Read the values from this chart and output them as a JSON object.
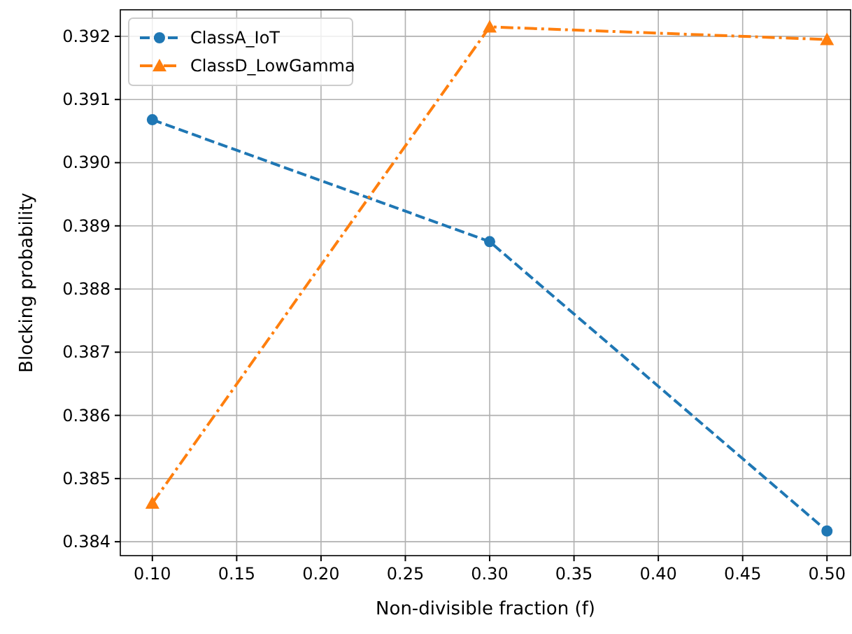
{
  "chart_data": {
    "type": "line",
    "xlabel": "Non-divisible fraction (f)",
    "ylabel": "Blocking probability",
    "x": [
      0.1,
      0.3,
      0.5
    ],
    "series": [
      {
        "name": "ClassA_IoT",
        "color": "#1f77b4",
        "values": [
          0.39068,
          0.38875,
          0.38417
        ],
        "marker": "circle",
        "line_style": "dashed"
      },
      {
        "name": "ClassD_LowGamma",
        "color": "#ff7f0e",
        "values": [
          0.38461,
          0.39215,
          0.39195
        ],
        "marker": "triangle",
        "line_style": "dashdot"
      }
    ],
    "xlim": [
      0.081,
      0.514
    ],
    "ylim": [
      0.38378,
      0.39242
    ],
    "xticks": [
      {
        "value": 0.1,
        "label": "0.10"
      },
      {
        "value": 0.15,
        "label": "0.15"
      },
      {
        "value": 0.2,
        "label": "0.20"
      },
      {
        "value": 0.25,
        "label": "0.25"
      },
      {
        "value": 0.3,
        "label": "0.30"
      },
      {
        "value": 0.35,
        "label": "0.35"
      },
      {
        "value": 0.4,
        "label": "0.40"
      },
      {
        "value": 0.45,
        "label": "0.45"
      },
      {
        "value": 0.5,
        "label": "0.50"
      }
    ],
    "yticks": [
      {
        "value": 0.384,
        "label": "0.384"
      },
      {
        "value": 0.385,
        "label": "0.385"
      },
      {
        "value": 0.386,
        "label": "0.386"
      },
      {
        "value": 0.387,
        "label": "0.387"
      },
      {
        "value": 0.388,
        "label": "0.388"
      },
      {
        "value": 0.389,
        "label": "0.389"
      },
      {
        "value": 0.39,
        "label": "0.390"
      },
      {
        "value": 0.391,
        "label": "0.391"
      },
      {
        "value": 0.392,
        "label": "0.392"
      }
    ],
    "grid": true,
    "legend": "top left"
  }
}
